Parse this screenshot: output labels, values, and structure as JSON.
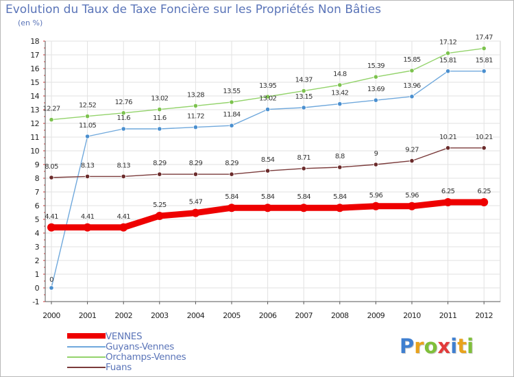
{
  "title": "Evolution du Taux de Taxe Foncière sur les Propriétés Non Bâties",
  "unit_label": "(en %)",
  "logo": {
    "text": "Proxiti",
    "colors": [
      "#3f7fd0",
      "#e8a21c",
      "#7fbf3a",
      "#e23b3b",
      "#3f7fd0",
      "#e8a21c",
      "#7fbf3a"
    ]
  },
  "chart_data": {
    "type": "line",
    "title": "Evolution du Taux de Taxe Foncière sur les Propriétés Non Bâties",
    "ylabel": "(en %)",
    "xlabel": "",
    "x": [
      "2000",
      "2001",
      "2002",
      "2003",
      "2004",
      "2005",
      "2006",
      "2007",
      "2008",
      "2009",
      "2010",
      "2011",
      "2012"
    ],
    "ylim": [
      -1,
      18
    ],
    "yticks": [
      "-1",
      "0",
      "1",
      "2",
      "3",
      "4",
      "5",
      "6",
      "7",
      "8",
      "9",
      "10",
      "11",
      "12",
      "13",
      "14",
      "15",
      "16",
      "17",
      "18"
    ],
    "grid": true,
    "legend_position": "bottom-left",
    "series": [
      {
        "name": "VENNES",
        "color": "#ee0000",
        "values": [
          4.41,
          4.41,
          4.41,
          5.25,
          5.47,
          5.84,
          5.84,
          5.84,
          5.84,
          5.96,
          5.96,
          6.25,
          6.25
        ],
        "labels": [
          "4.41",
          "4.41",
          "4.41",
          "5.25",
          "5.47",
          "5.84",
          "5.84",
          "5.84",
          "5.84",
          "5.96",
          "5.96",
          "6.25",
          "6.25"
        ]
      },
      {
        "name": "Guyans-Vennes",
        "color": "#6fa8dc",
        "marker": "#4a8fcf",
        "values": [
          0,
          11.05,
          11.6,
          11.6,
          11.72,
          11.84,
          13.02,
          13.15,
          13.42,
          13.69,
          13.96,
          15.81,
          15.81
        ],
        "labels": [
          "0",
          "11.05",
          "11.6",
          "11.6",
          "11.72",
          "11.84",
          "13.02",
          "13.15",
          "13.42",
          "13.69",
          "13.96",
          "15.81",
          "15.81"
        ]
      },
      {
        "name": "Orchamps-Vennes",
        "color": "#93d36b",
        "marker": "#7cc24e",
        "values": [
          12.27,
          12.52,
          12.76,
          13.02,
          13.28,
          13.55,
          13.95,
          14.37,
          14.8,
          15.39,
          15.85,
          17.12,
          17.47
        ],
        "labels": [
          "12.27",
          "12.52",
          "12.76",
          "13.02",
          "13.28",
          "13.55",
          "13.95",
          "14.37",
          "14.8",
          "15.39",
          "15.85",
          "17.12",
          "17.47"
        ]
      },
      {
        "name": "Fuans",
        "color": "#7a3a3a",
        "marker": "#6b2b2b",
        "values": [
          8.05,
          8.13,
          8.13,
          8.29,
          8.29,
          8.29,
          8.54,
          8.71,
          8.8,
          9,
          9.27,
          10.21,
          10.21
        ],
        "labels": [
          "8.05",
          "8.13",
          "8.13",
          "8.29",
          "8.29",
          "8.29",
          "8.54",
          "8.71",
          "8.8",
          "9",
          "9.27",
          "10.21",
          "10.21"
        ]
      }
    ]
  }
}
